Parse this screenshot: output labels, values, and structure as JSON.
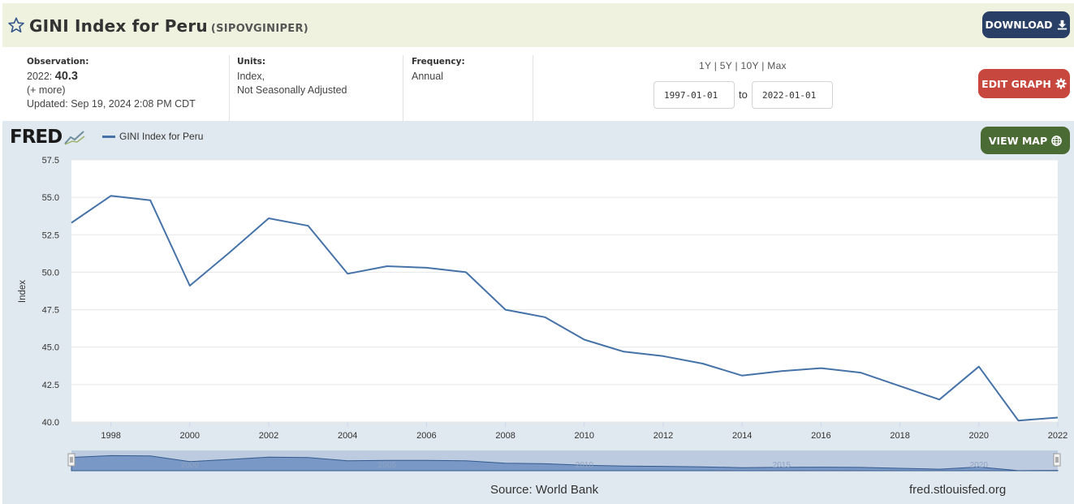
{
  "header": {
    "title": "GINI Index for Peru",
    "series_id": "(SIPOVGINIPER)",
    "download_label": "DOWNLOAD"
  },
  "meta": {
    "observation_label": "Observation:",
    "observation_year": "2022:",
    "observation_value": "40.3",
    "more_link": "(+ more)",
    "updated": "Updated: Sep 19, 2024 2:08 PM CDT",
    "units_label": "Units:",
    "units_line1": "Index,",
    "units_line2": "Not Seasonally Adjusted",
    "frequency_label": "Frequency:",
    "frequency_value": "Annual"
  },
  "controls": {
    "range_1y": "1Y",
    "range_5y": "5Y",
    "range_10y": "10Y",
    "range_max": "Max",
    "separator": "|",
    "start_date": "1997-01-01",
    "to_label": "to",
    "end_date": "2022-01-01",
    "edit_graph_label": "EDIT GRAPH",
    "view_map_label": "VIEW MAP"
  },
  "branding": {
    "logo_text": "FRED",
    "source": "Source: World Bank",
    "url": "fred.stlouisfed.org"
  },
  "colors": {
    "series": "#4572a7",
    "download_button": "#2a3f66",
    "edit_button": "#c7463d",
    "map_button": "#4b6b35",
    "chart_background": "#e1e9f0"
  },
  "chart_data": {
    "type": "line",
    "series": [
      {
        "name": "GINI Index for Peru",
        "x": [
          1997,
          1998,
          1999,
          2000,
          2001,
          2002,
          2003,
          2004,
          2005,
          2006,
          2007,
          2008,
          2009,
          2010,
          2011,
          2012,
          2013,
          2014,
          2015,
          2016,
          2017,
          2018,
          2019,
          2020,
          2021,
          2022
        ],
        "values": [
          53.3,
          55.1,
          54.8,
          49.1,
          51.3,
          53.6,
          53.1,
          49.9,
          50.4,
          50.3,
          50.0,
          47.5,
          47.0,
          45.5,
          44.7,
          44.4,
          43.9,
          43.1,
          43.4,
          43.6,
          43.3,
          42.4,
          41.5,
          43.7,
          40.1,
          40.3
        ]
      }
    ],
    "xlabel": "",
    "ylabel": "Index",
    "xlim": [
      1997,
      2022
    ],
    "ylim": [
      40.0,
      57.5
    ],
    "yticks": [
      "40.0",
      "42.5",
      "45.0",
      "47.5",
      "50.0",
      "52.5",
      "55.0",
      "57.5"
    ],
    "xticks": [
      "1998",
      "2000",
      "2002",
      "2004",
      "2006",
      "2008",
      "2010",
      "2012",
      "2014",
      "2016",
      "2018",
      "2020",
      "2022"
    ],
    "navigator_ticks": [
      "2000",
      "2005",
      "2010",
      "2015",
      "2020"
    ],
    "grid": true,
    "legend": "top-left"
  }
}
